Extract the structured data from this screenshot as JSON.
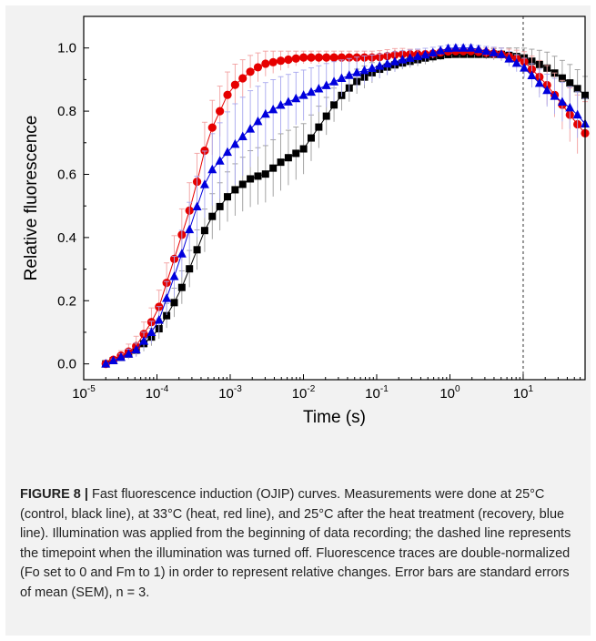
{
  "chart_data": {
    "type": "scatter",
    "title": "",
    "xlabel": "Time (s)",
    "ylabel": "Relative fluorescence",
    "xscale": "log",
    "xlim": [
      2e-05,
      70
    ],
    "ylim": [
      -0.05,
      1.1
    ],
    "x_ticks": [
      {
        "value": 1e-05,
        "base": "10",
        "exp": "-5"
      },
      {
        "value": 0.0001,
        "base": "10",
        "exp": "-4"
      },
      {
        "value": 0.001,
        "base": "10",
        "exp": "-3"
      },
      {
        "value": 0.01,
        "base": "10",
        "exp": "-2"
      },
      {
        "value": 0.1,
        "base": "10",
        "exp": "-1"
      },
      {
        "value": 1,
        "base": "10",
        "exp": "0"
      },
      {
        "value": 10,
        "base": "10",
        "exp": "1"
      }
    ],
    "y_ticks": [
      "0.0",
      "0.2",
      "0.4",
      "0.6",
      "0.8",
      "1.0"
    ],
    "vline_x": 10,
    "series": [
      {
        "color": "#000000",
        "marker": "square",
        "error_color": "#9a9a9a",
        "x": [
          2e-05,
          5e-05,
          0.0001,
          0.0002,
          0.0003,
          0.0005,
          0.001,
          0.002,
          0.003,
          0.005,
          0.01,
          0.02,
          0.03,
          0.05,
          0.1,
          0.2,
          0.5,
          1,
          2,
          5,
          10,
          20,
          50,
          70
        ],
        "y": [
          0.0,
          0.04,
          0.1,
          0.22,
          0.32,
          0.45,
          0.54,
          0.59,
          0.6,
          0.64,
          0.68,
          0.78,
          0.84,
          0.89,
          0.93,
          0.95,
          0.97,
          0.98,
          0.98,
          0.98,
          0.97,
          0.94,
          0.88,
          0.85
        ],
        "err": [
          0.0,
          0.02,
          0.03,
          0.05,
          0.06,
          0.07,
          0.08,
          0.09,
          0.09,
          0.09,
          0.08,
          0.06,
          0.05,
          0.04,
          0.03,
          0.02,
          0.02,
          0.01,
          0.01,
          0.02,
          0.03,
          0.05,
          0.06,
          0.06
        ]
      },
      {
        "color": "#e60000",
        "marker": "circle",
        "error_color": "#f2a0a0",
        "x": [
          2e-05,
          5e-05,
          0.0001,
          0.0002,
          0.0003,
          0.0005,
          0.001,
          0.002,
          0.003,
          0.005,
          0.01,
          0.02,
          0.03,
          0.05,
          0.1,
          0.2,
          0.5,
          1,
          2,
          5,
          10,
          20,
          50,
          70
        ],
        "y": [
          0.0,
          0.05,
          0.16,
          0.38,
          0.51,
          0.72,
          0.87,
          0.93,
          0.95,
          0.96,
          0.97,
          0.97,
          0.97,
          0.97,
          0.97,
          0.98,
          0.98,
          0.99,
          0.99,
          0.98,
          0.96,
          0.89,
          0.77,
          0.73
        ],
        "err": [
          0.0,
          0.03,
          0.05,
          0.08,
          0.09,
          0.09,
          0.07,
          0.05,
          0.04,
          0.03,
          0.02,
          0.02,
          0.02,
          0.02,
          0.02,
          0.02,
          0.01,
          0.01,
          0.01,
          0.02,
          0.03,
          0.06,
          0.09,
          0.1
        ]
      },
      {
        "color": "#0000dd",
        "marker": "triangle",
        "error_color": "#a8a8ee",
        "x": [
          2e-05,
          5e-05,
          0.0001,
          0.0002,
          0.0003,
          0.0005,
          0.001,
          0.002,
          0.003,
          0.005,
          0.01,
          0.02,
          0.03,
          0.05,
          0.1,
          0.2,
          0.5,
          1,
          2,
          5,
          10,
          20,
          50,
          70
        ],
        "y": [
          0.0,
          0.04,
          0.12,
          0.32,
          0.45,
          0.6,
          0.68,
          0.75,
          0.79,
          0.82,
          0.85,
          0.88,
          0.9,
          0.92,
          0.94,
          0.96,
          0.98,
          1.0,
          1.0,
          0.98,
          0.94,
          0.87,
          0.8,
          0.76
        ],
        "err": [
          0.0,
          0.02,
          0.04,
          0.07,
          0.09,
          0.11,
          0.13,
          0.12,
          0.1,
          0.09,
          0.08,
          0.07,
          0.06,
          0.05,
          0.04,
          0.03,
          0.02,
          0.01,
          0.01,
          0.02,
          0.03,
          0.05,
          0.07,
          0.08
        ]
      }
    ]
  },
  "caption": {
    "label": "FIGURE 8 |",
    "text": " Fast fluorescence induction (OJIP) curves. Measurements were done at 25°C (control, black line), at 33°C (heat, red line), and 25°C after the heat treatment (recovery, blue line). Illumination was applied from the beginning of data recording; the dashed line represents the timepoint when the illumination was turned off. Fluorescence traces are double-normalized (Fo set to 0 and Fm to 1) in order to represent relative changes. Error bars are standard errors of mean (SEM), n = 3."
  }
}
